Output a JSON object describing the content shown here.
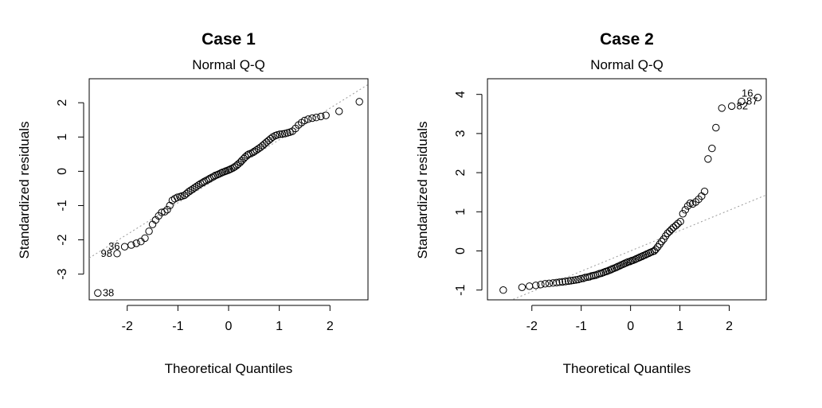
{
  "chart_data": [
    {
      "type": "scatter",
      "title": "Case 1",
      "subtitle": "Normal Q-Q",
      "xlabel": "Theoretical Quantiles",
      "ylabel": "Standardized residuals",
      "xlim": [
        -2.75,
        2.75
      ],
      "ylim": [
        -3.75,
        2.7
      ],
      "xticks": [
        -2,
        -1,
        0,
        1,
        2
      ],
      "yticks": [
        -3,
        -2,
        -1,
        0,
        1,
        2
      ],
      "reference_line": {
        "intercept": 0.0,
        "slope": 0.92,
        "style": "dotted"
      },
      "points": [
        [
          -2.58,
          -3.55
        ],
        [
          -2.2,
          -2.4
        ],
        [
          -2.05,
          -2.2
        ],
        [
          -1.92,
          -2.15
        ],
        [
          -1.82,
          -2.1
        ],
        [
          -1.73,
          -2.05
        ],
        [
          -1.65,
          -1.95
        ],
        [
          -1.57,
          -1.75
        ],
        [
          -1.5,
          -1.55
        ],
        [
          -1.44,
          -1.42
        ],
        [
          -1.38,
          -1.3
        ],
        [
          -1.32,
          -1.2
        ],
        [
          -1.26,
          -1.18
        ],
        [
          -1.21,
          -1.12
        ],
        [
          -1.16,
          -1.0
        ],
        [
          -1.11,
          -0.85
        ],
        [
          -1.06,
          -0.8
        ],
        [
          -1.01,
          -0.76
        ],
        [
          -0.96,
          -0.74
        ],
        [
          -0.92,
          -0.72
        ],
        [
          -0.87,
          -0.7
        ],
        [
          -0.83,
          -0.65
        ],
        [
          -0.79,
          -0.6
        ],
        [
          -0.75,
          -0.56
        ],
        [
          -0.71,
          -0.52
        ],
        [
          -0.67,
          -0.48
        ],
        [
          -0.63,
          -0.44
        ],
        [
          -0.59,
          -0.4
        ],
        [
          -0.55,
          -0.36
        ],
        [
          -0.51,
          -0.33
        ],
        [
          -0.48,
          -0.3
        ],
        [
          -0.44,
          -0.27
        ],
        [
          -0.4,
          -0.24
        ],
        [
          -0.37,
          -0.21
        ],
        [
          -0.33,
          -0.18
        ],
        [
          -0.29,
          -0.15
        ],
        [
          -0.26,
          -0.12
        ],
        [
          -0.22,
          -0.1
        ],
        [
          -0.19,
          -0.08
        ],
        [
          -0.15,
          -0.05
        ],
        [
          -0.12,
          -0.03
        ],
        [
          -0.08,
          -0.01
        ],
        [
          -0.05,
          0.01
        ],
        [
          -0.01,
          0.03
        ],
        [
          0.02,
          0.05
        ],
        [
          0.05,
          0.07
        ],
        [
          0.09,
          0.1
        ],
        [
          0.12,
          0.13
        ],
        [
          0.16,
          0.17
        ],
        [
          0.19,
          0.21
        ],
        [
          0.23,
          0.26
        ],
        [
          0.26,
          0.31
        ],
        [
          0.3,
          0.37
        ],
        [
          0.33,
          0.42
        ],
        [
          0.37,
          0.47
        ],
        [
          0.4,
          0.5
        ],
        [
          0.44,
          0.52
        ],
        [
          0.48,
          0.55
        ],
        [
          0.51,
          0.58
        ],
        [
          0.55,
          0.62
        ],
        [
          0.59,
          0.66
        ],
        [
          0.63,
          0.7
        ],
        [
          0.67,
          0.75
        ],
        [
          0.71,
          0.8
        ],
        [
          0.75,
          0.85
        ],
        [
          0.79,
          0.9
        ],
        [
          0.83,
          0.95
        ],
        [
          0.87,
          1.0
        ],
        [
          0.92,
          1.04
        ],
        [
          0.96,
          1.06
        ],
        [
          1.01,
          1.08
        ],
        [
          1.06,
          1.09
        ],
        [
          1.11,
          1.1
        ],
        [
          1.16,
          1.12
        ],
        [
          1.21,
          1.14
        ],
        [
          1.26,
          1.17
        ],
        [
          1.32,
          1.25
        ],
        [
          1.38,
          1.35
        ],
        [
          1.44,
          1.42
        ],
        [
          1.5,
          1.48
        ],
        [
          1.57,
          1.52
        ],
        [
          1.65,
          1.55
        ],
        [
          1.73,
          1.57
        ],
        [
          1.82,
          1.6
        ],
        [
          1.92,
          1.63
        ],
        [
          2.18,
          1.75
        ],
        [
          2.58,
          2.03
        ]
      ],
      "labels": [
        {
          "index": 0,
          "text": "38",
          "pos": "right"
        },
        {
          "index": 1,
          "text": "98",
          "pos": "left"
        },
        {
          "index": 2,
          "text": "36",
          "pos": "left"
        }
      ]
    },
    {
      "type": "scatter",
      "title": "Case 2",
      "subtitle": "Normal Q-Q",
      "xlabel": "Theoretical Quantiles",
      "ylabel": "Standardized residuals",
      "xlim": [
        -2.9,
        2.75
      ],
      "ylim": [
        -1.25,
        4.4
      ],
      "xticks": [
        -2,
        -1,
        0,
        1,
        2
      ],
      "yticks": [
        -1,
        0,
        1,
        2,
        3,
        4
      ],
      "reference_line": {
        "intercept": 0.0,
        "slope": 0.52,
        "style": "dotted"
      },
      "points": [
        [
          -2.58,
          -1.0
        ],
        [
          -2.2,
          -0.93
        ],
        [
          -2.05,
          -0.9
        ],
        [
          -1.92,
          -0.88
        ],
        [
          -1.82,
          -0.86
        ],
        [
          -1.73,
          -0.84
        ],
        [
          -1.65,
          -0.83
        ],
        [
          -1.57,
          -0.82
        ],
        [
          -1.5,
          -0.81
        ],
        [
          -1.44,
          -0.8
        ],
        [
          -1.38,
          -0.79
        ],
        [
          -1.32,
          -0.78
        ],
        [
          -1.26,
          -0.77
        ],
        [
          -1.21,
          -0.76
        ],
        [
          -1.16,
          -0.75
        ],
        [
          -1.11,
          -0.74
        ],
        [
          -1.06,
          -0.73
        ],
        [
          -1.01,
          -0.71
        ],
        [
          -0.96,
          -0.7
        ],
        [
          -0.92,
          -0.68
        ],
        [
          -0.87,
          -0.67
        ],
        [
          -0.83,
          -0.66
        ],
        [
          -0.79,
          -0.64
        ],
        [
          -0.75,
          -0.63
        ],
        [
          -0.71,
          -0.62
        ],
        [
          -0.67,
          -0.6
        ],
        [
          -0.63,
          -0.58
        ],
        [
          -0.59,
          -0.57
        ],
        [
          -0.55,
          -0.55
        ],
        [
          -0.51,
          -0.53
        ],
        [
          -0.48,
          -0.52
        ],
        [
          -0.44,
          -0.5
        ],
        [
          -0.4,
          -0.48
        ],
        [
          -0.37,
          -0.46
        ],
        [
          -0.33,
          -0.44
        ],
        [
          -0.29,
          -0.42
        ],
        [
          -0.26,
          -0.4
        ],
        [
          -0.22,
          -0.38
        ],
        [
          -0.19,
          -0.36
        ],
        [
          -0.15,
          -0.34
        ],
        [
          -0.12,
          -0.32
        ],
        [
          -0.08,
          -0.3
        ],
        [
          -0.05,
          -0.28
        ],
        [
          -0.01,
          -0.27
        ],
        [
          0.02,
          -0.25
        ],
        [
          0.05,
          -0.24
        ],
        [
          0.09,
          -0.22
        ],
        [
          0.12,
          -0.2
        ],
        [
          0.16,
          -0.18
        ],
        [
          0.19,
          -0.16
        ],
        [
          0.23,
          -0.14
        ],
        [
          0.26,
          -0.12
        ],
        [
          0.3,
          -0.1
        ],
        [
          0.33,
          -0.08
        ],
        [
          0.37,
          -0.06
        ],
        [
          0.4,
          -0.04
        ],
        [
          0.44,
          -0.02
        ],
        [
          0.48,
          0.0
        ],
        [
          0.51,
          0.04
        ],
        [
          0.55,
          0.1
        ],
        [
          0.59,
          0.17
        ],
        [
          0.63,
          0.24
        ],
        [
          0.67,
          0.3
        ],
        [
          0.71,
          0.38
        ],
        [
          0.75,
          0.45
        ],
        [
          0.79,
          0.5
        ],
        [
          0.83,
          0.55
        ],
        [
          0.87,
          0.6
        ],
        [
          0.92,
          0.65
        ],
        [
          0.96,
          0.7
        ],
        [
          1.01,
          0.75
        ],
        [
          1.06,
          0.95
        ],
        [
          1.11,
          1.05
        ],
        [
          1.16,
          1.15
        ],
        [
          1.21,
          1.22
        ],
        [
          1.26,
          1.2
        ],
        [
          1.32,
          1.25
        ],
        [
          1.38,
          1.32
        ],
        [
          1.44,
          1.4
        ],
        [
          1.5,
          1.52
        ],
        [
          1.57,
          2.35
        ],
        [
          1.65,
          2.62
        ],
        [
          1.73,
          3.15
        ],
        [
          1.85,
          3.65
        ],
        [
          2.05,
          3.7
        ],
        [
          2.25,
          3.82
        ],
        [
          2.58,
          3.92
        ]
      ],
      "labels": [
        {
          "index": 84,
          "text": "82",
          "pos": "right"
        },
        {
          "index": 85,
          "text": "87",
          "pos": "right"
        },
        {
          "index": 86,
          "text": "16",
          "pos": "left-up"
        }
      ]
    }
  ]
}
